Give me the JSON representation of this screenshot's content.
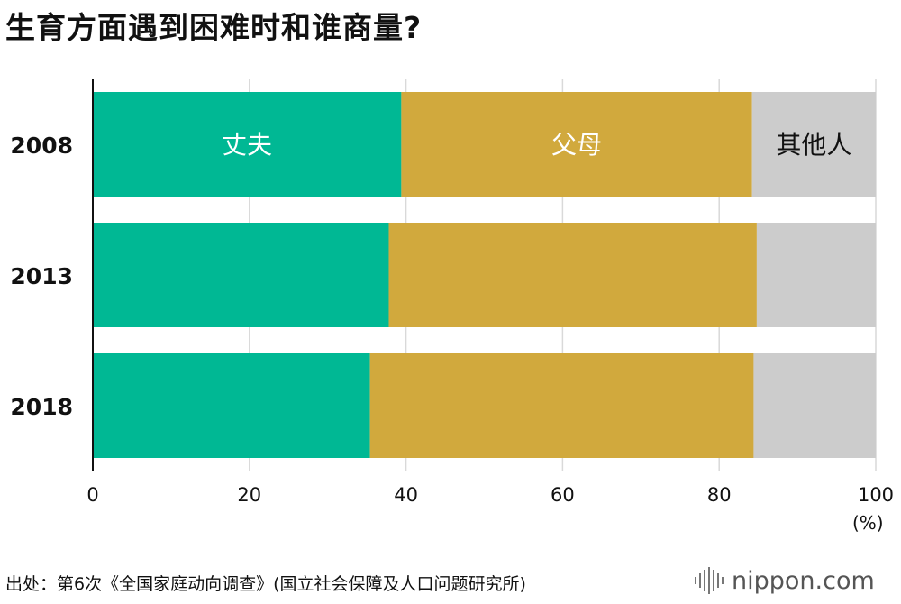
{
  "title": "生育方面遇到困难时和谁商量?",
  "source": "出处：第6次《全国家庭动向调查》(国立社会保障及人口问题研究所)",
  "logo": "nippon.com",
  "chart_data": {
    "type": "bar",
    "orientation": "horizontal",
    "stacked": true,
    "categories": [
      "2008",
      "2013",
      "2018"
    ],
    "series": [
      {
        "name": "丈夫",
        "values": [
          39.4,
          37.8,
          35.4
        ],
        "color": "#00b894"
      },
      {
        "name": "父母",
        "values": [
          44.8,
          47.0,
          49.0
        ],
        "color": "#d1a93d"
      },
      {
        "name": "其他人",
        "values": [
          15.8,
          15.2,
          15.6
        ],
        "color": "#cccccc"
      }
    ],
    "series_labels_on_category": "2008",
    "xlim": [
      0,
      100
    ],
    "xticks": [
      "0",
      "20",
      "40",
      "60",
      "80",
      "100"
    ],
    "xunit": "(%)",
    "grid": true
  }
}
